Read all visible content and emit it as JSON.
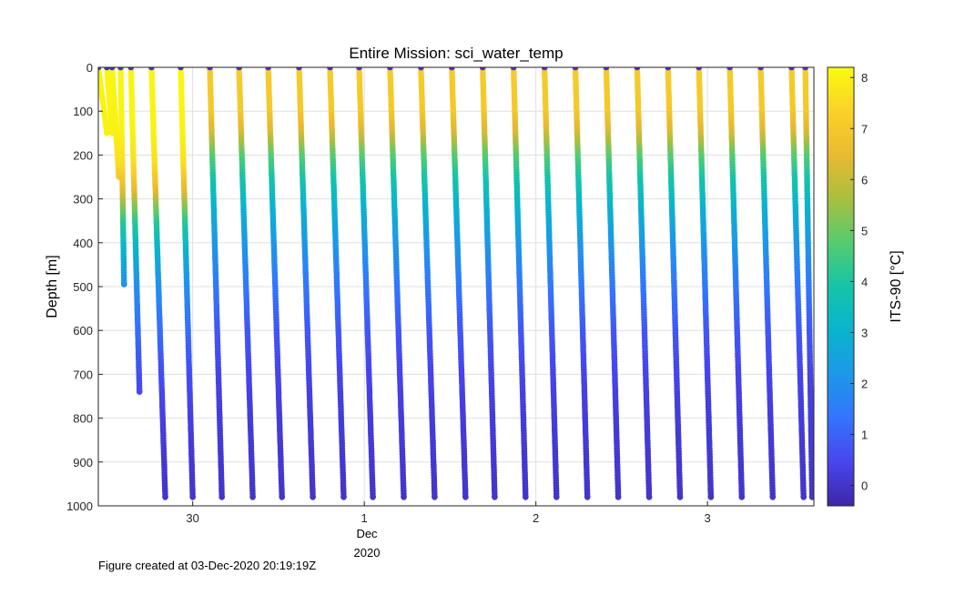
{
  "chart_data": {
    "type": "scatter",
    "title": "Entire Mission: sci_water_temp",
    "ylabel": "Depth [m]",
    "xlabel": "",
    "ylim": [
      0,
      1000
    ],
    "y_reversed": true,
    "xlim": [
      29.45,
      33.62
    ],
    "yticks": [
      0,
      100,
      200,
      300,
      400,
      500,
      600,
      700,
      800,
      900,
      1000
    ],
    "xticks": [
      {
        "value": 30,
        "label": "30"
      },
      {
        "value": 31,
        "label": "1"
      },
      {
        "value": 32,
        "label": "2"
      },
      {
        "value": 33,
        "label": "3"
      }
    ],
    "x_sublabels": {
      "month": "Dec",
      "year": "2020"
    },
    "grid": true,
    "colorbar": {
      "label": "ITS-90 [°C]",
      "clim": [
        -0.4,
        8.2
      ],
      "ticks": [
        0,
        1,
        2,
        3,
        4,
        5,
        6,
        7,
        8
      ],
      "colormap": "parula"
    },
    "profiles": [
      {
        "x_top": 29.45,
        "x_bottom": 29.5,
        "max_depth": 150
      },
      {
        "x_top": 29.5,
        "x_bottom": 29.53,
        "max_depth": 150
      },
      {
        "x_top": 29.53,
        "x_bottom": 29.57,
        "max_depth": 250
      },
      {
        "x_top": 29.58,
        "x_bottom": 29.6,
        "max_depth": 495
      },
      {
        "x_top": 29.64,
        "x_bottom": 29.69,
        "max_depth": 740
      },
      {
        "x_top": 29.76,
        "x_bottom": 29.84,
        "max_depth": 980
      },
      {
        "x_top": 29.93,
        "x_bottom": 30.0,
        "max_depth": 980
      },
      {
        "x_top": 30.1,
        "x_bottom": 30.17,
        "max_depth": 980
      },
      {
        "x_top": 30.27,
        "x_bottom": 30.35,
        "max_depth": 980
      },
      {
        "x_top": 30.44,
        "x_bottom": 30.52,
        "max_depth": 980
      },
      {
        "x_top": 30.62,
        "x_bottom": 30.7,
        "max_depth": 980
      },
      {
        "x_top": 30.8,
        "x_bottom": 30.88,
        "max_depth": 980
      },
      {
        "x_top": 30.97,
        "x_bottom": 31.05,
        "max_depth": 980
      },
      {
        "x_top": 31.15,
        "x_bottom": 31.23,
        "max_depth": 980
      },
      {
        "x_top": 31.33,
        "x_bottom": 31.41,
        "max_depth": 980
      },
      {
        "x_top": 31.51,
        "x_bottom": 31.59,
        "max_depth": 980
      },
      {
        "x_top": 31.69,
        "x_bottom": 31.76,
        "max_depth": 980
      },
      {
        "x_top": 31.87,
        "x_bottom": 31.94,
        "max_depth": 980
      },
      {
        "x_top": 32.05,
        "x_bottom": 32.12,
        "max_depth": 980
      },
      {
        "x_top": 32.23,
        "x_bottom": 32.3,
        "max_depth": 980
      },
      {
        "x_top": 32.41,
        "x_bottom": 32.48,
        "max_depth": 980
      },
      {
        "x_top": 32.59,
        "x_bottom": 32.66,
        "max_depth": 980
      },
      {
        "x_top": 32.77,
        "x_bottom": 32.84,
        "max_depth": 980
      },
      {
        "x_top": 32.95,
        "x_bottom": 33.02,
        "max_depth": 980
      },
      {
        "x_top": 33.13,
        "x_bottom": 33.2,
        "max_depth": 980
      },
      {
        "x_top": 33.31,
        "x_bottom": 33.38,
        "max_depth": 980
      },
      {
        "x_top": 33.49,
        "x_bottom": 33.56,
        "max_depth": 980
      },
      {
        "x_top": 33.57,
        "x_bottom": 33.61,
        "max_depth": 980
      }
    ],
    "temperature_profiles": [
      {
        "from_profile": 0,
        "to_profile": 6,
        "depth": [
          0,
          150,
          220,
          280,
          350,
          420,
          500,
          600,
          700,
          800,
          900,
          1000
        ],
        "temp": [
          8.1,
          8.0,
          7.6,
          6.5,
          4.3,
          3.0,
          2.0,
          1.2,
          0.6,
          0.3,
          0.1,
          0.0
        ]
      },
      {
        "from_profile": 7,
        "to_profile": 27,
        "depth": [
          0,
          100,
          150,
          200,
          260,
          320,
          400,
          500,
          600,
          700,
          800,
          900,
          1000
        ],
        "temp": [
          7.1,
          7.0,
          6.2,
          4.8,
          3.8,
          3.0,
          2.2,
          1.4,
          0.8,
          0.4,
          0.2,
          0.1,
          0.0
        ]
      }
    ]
  },
  "footer": {
    "created": "Figure created at 03-Dec-2020 20:19:19Z"
  }
}
